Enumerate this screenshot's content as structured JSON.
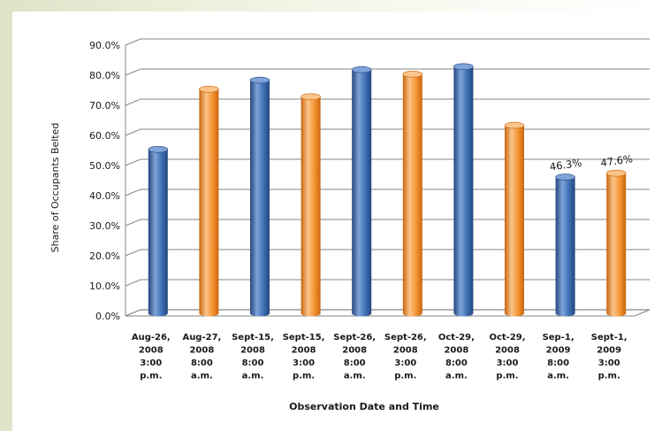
{
  "chart_data": {
    "type": "bar",
    "title": "",
    "xlabel": "Observation Date and Time",
    "ylabel": "Share of Occupants Belted",
    "ylim": [
      0,
      90
    ],
    "yticks": [
      "0.0%",
      "10.0%",
      "20.0%",
      "30.0%",
      "40.0%",
      "50.0%",
      "60.0%",
      "70.0%",
      "80.0%",
      "90.0%"
    ],
    "grid": true,
    "categories": [
      [
        "Aug-26,",
        "2008",
        "3:00",
        "p.m."
      ],
      [
        "Aug-27,",
        "2008",
        "8:00",
        "a.m."
      ],
      [
        "Sept-15,",
        "2008",
        "8:00",
        "a.m."
      ],
      [
        "Sept-15,",
        "2008",
        "3:00",
        "p.m."
      ],
      [
        "Sept-26,",
        "2008",
        "8:00",
        "a.m."
      ],
      [
        "Sept-26,",
        "2008",
        "3:00",
        "p.m."
      ],
      [
        "Oct-29,",
        "2008",
        "8:00",
        "a.m."
      ],
      [
        "Oct-29,",
        "2008",
        "3:00",
        "p.m."
      ],
      [
        "Sep-1,",
        "2009",
        "8:00",
        "a.m."
      ],
      [
        "Sept-1,",
        "2009",
        "3:00",
        "p.m."
      ]
    ],
    "values": [
      55.5,
      75.5,
      78.5,
      73.0,
      82.0,
      80.5,
      83.0,
      63.5,
      46.3,
      47.6
    ],
    "bar_colors": [
      "blue",
      "orange",
      "blue",
      "orange",
      "blue",
      "orange",
      "blue",
      "orange",
      "blue",
      "orange"
    ],
    "data_labels": [
      "",
      "",
      "",
      "",
      "",
      "",
      "",
      "",
      "46.3%",
      "47.6%"
    ]
  },
  "colors": {
    "blue": "#3d6fb5",
    "blue_dark": "#24467d",
    "blue_light": "#7ea3d8",
    "orange": "#f59331",
    "orange_dark": "#c8650f",
    "orange_light": "#fbc48a",
    "grid": "#868686",
    "text": "#1a1a1a"
  }
}
